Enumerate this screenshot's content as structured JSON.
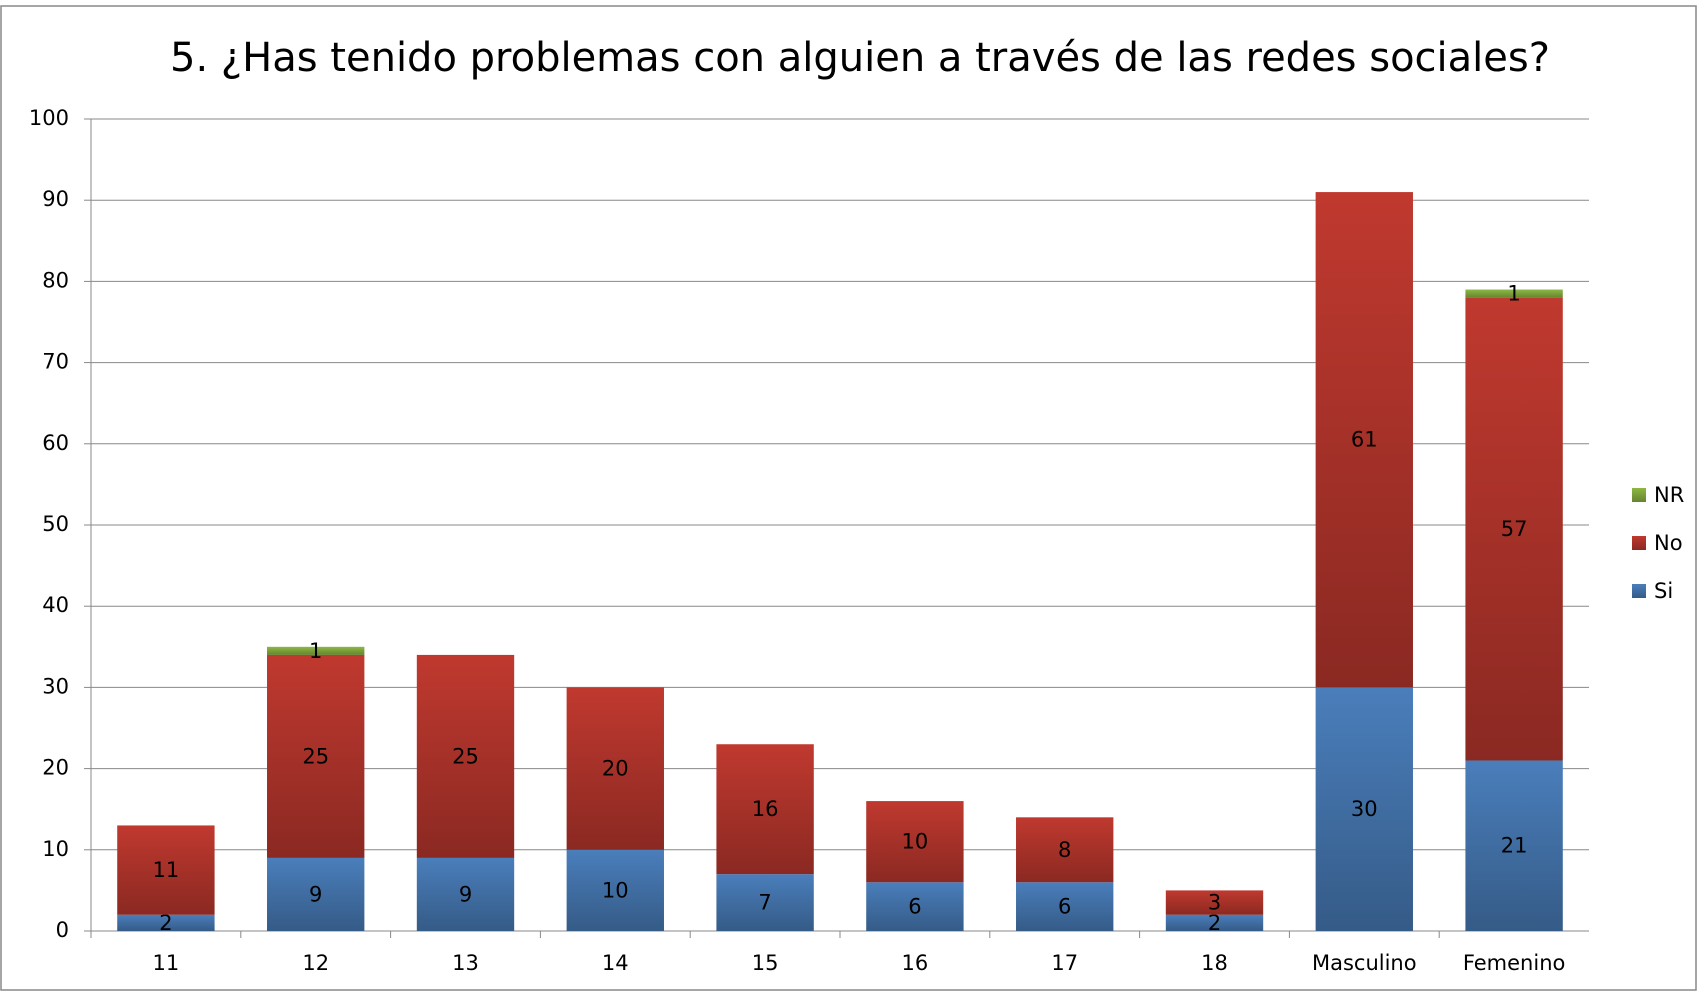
{
  "chart_data": {
    "type": "bar",
    "stacked": true,
    "title": "5. ¿Has tenido problemas con alguien a través de las redes sociales?",
    "categories": [
      "11",
      "12",
      "13",
      "14",
      "15",
      "16",
      "17",
      "18",
      "Masculino",
      "Femenino"
    ],
    "series": [
      {
        "name": "Si",
        "color": "#4a7ebb",
        "values": [
          2,
          9,
          9,
          10,
          7,
          6,
          6,
          2,
          30,
          21
        ]
      },
      {
        "name": "No",
        "color": "#c0392f",
        "values": [
          11,
          25,
          25,
          20,
          16,
          10,
          8,
          3,
          61,
          57
        ]
      },
      {
        "name": "NR",
        "color": "#8db843",
        "values": [
          null,
          1,
          null,
          null,
          null,
          null,
          null,
          null,
          null,
          1
        ]
      }
    ],
    "ylim": [
      0,
      100
    ],
    "yticks": [
      0,
      10,
      20,
      30,
      40,
      50,
      60,
      70,
      80,
      90,
      100
    ],
    "grid": true,
    "legend": "right"
  }
}
